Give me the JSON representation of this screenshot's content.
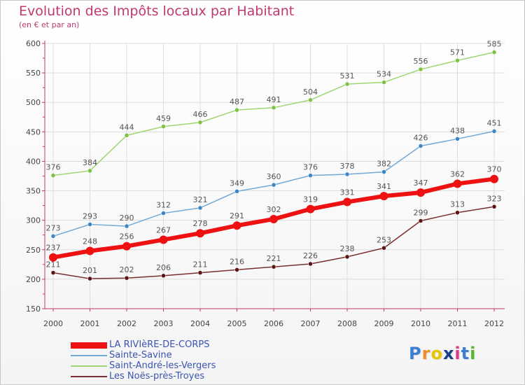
{
  "header": {
    "title": "Evolution des Impôts locaux par Habitant",
    "subtitle": "(en € et par an)"
  },
  "colors": {
    "title": "#c0386e",
    "axis": "#c0386e",
    "grid": "#dddddd"
  },
  "logo": {
    "text": "Proxiti",
    "letter_colors": [
      "#3b7fd0",
      "#f28c28",
      "#e8c500",
      "#1a3f8a",
      "#d93a8c",
      "#3b7fd0",
      "#58b530"
    ]
  },
  "chart_data": {
    "type": "line",
    "title": "Evolution des Impôts locaux par Habitant",
    "subtitle": "(en € et par an)",
    "x": [
      "2000",
      "2001",
      "2002",
      "2003",
      "2004",
      "2005",
      "2006",
      "2007",
      "2008",
      "2009",
      "2010",
      "2011",
      "2012"
    ],
    "ylim": [
      150,
      600
    ],
    "yticks": [
      150,
      200,
      250,
      300,
      350,
      400,
      450,
      500,
      550,
      600
    ],
    "grid": true,
    "legend_position": "bottom-left",
    "series": [
      {
        "name": "Saint-André-les-Vergers",
        "color": "#9fd572",
        "point_color": "#7dc242",
        "line_width": 1.5,
        "values": [
          376,
          384,
          444,
          459,
          466,
          487,
          491,
          504,
          531,
          534,
          556,
          571,
          585
        ]
      },
      {
        "name": "Sainte-Savine",
        "color": "#72a9d6",
        "point_color": "#3d86c6",
        "line_width": 1.5,
        "values": [
          273,
          293,
          290,
          312,
          321,
          349,
          360,
          376,
          378,
          382,
          426,
          438,
          451
        ]
      },
      {
        "name": "LA RIVIèRE-DE-CORPS",
        "color": "#ee1111",
        "point_color": "#ee1111",
        "line_width": 6,
        "values": [
          237,
          248,
          256,
          267,
          278,
          291,
          302,
          319,
          331,
          341,
          347,
          362,
          370
        ]
      },
      {
        "name": "Les Noës-près-Troyes",
        "color": "#7a3030",
        "point_color": "#5a1414",
        "line_width": 1.5,
        "values": [
          211,
          201,
          202,
          206,
          211,
          216,
          221,
          226,
          238,
          253,
          299,
          313,
          323
        ]
      }
    ],
    "legend_order": [
      "LA RIVIèRE-DE-CORPS",
      "Sainte-Savine",
      "Saint-André-les-Vergers",
      "Les Noës-près-Troyes"
    ]
  }
}
